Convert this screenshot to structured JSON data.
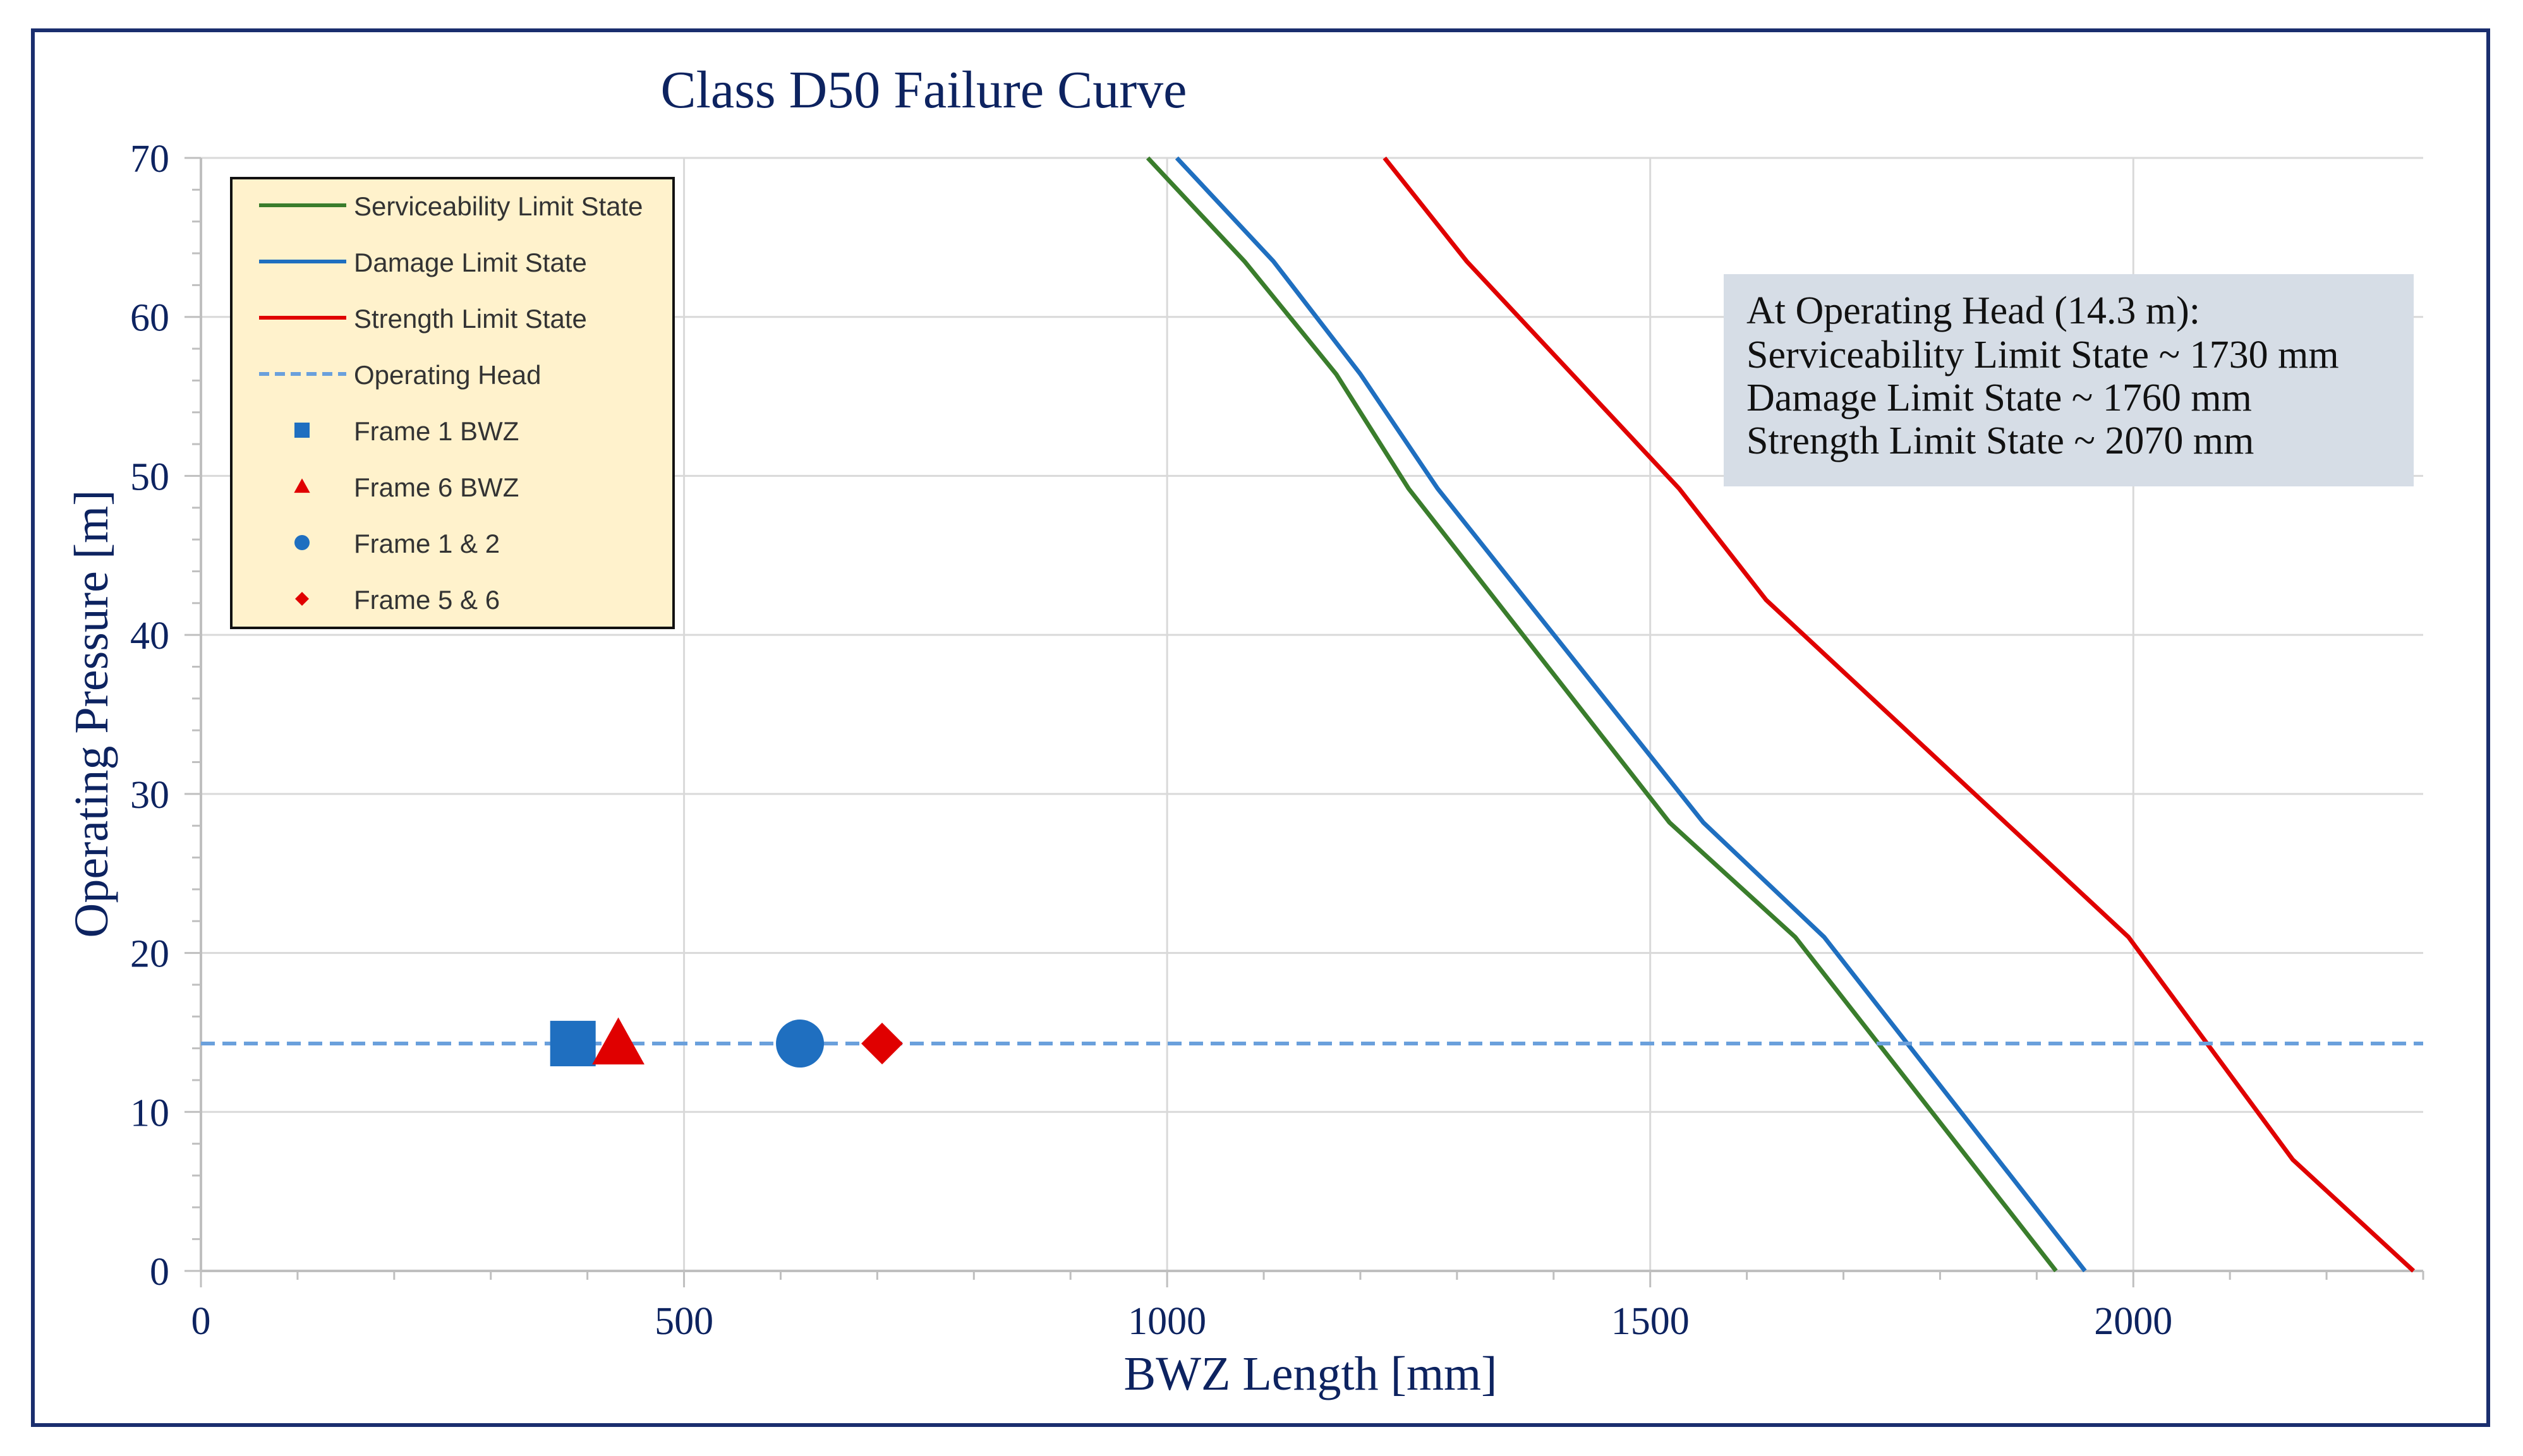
{
  "chart_data": {
    "type": "line",
    "title": "Class D50 Failure Curve",
    "xlabel": "BWZ Length [mm]",
    "ylabel": "Operating Pressure [m]",
    "xlim": [
      0,
      2300
    ],
    "ylim": [
      0,
      70
    ],
    "x_ticks": [
      0,
      500,
      1000,
      1500,
      2000
    ],
    "y_ticks": [
      0,
      10,
      20,
      30,
      40,
      50,
      60,
      70
    ],
    "grid": true,
    "legend_position": "top-left",
    "series": [
      {
        "name": "Serviceability Limit State",
        "color": "#3a7d2c",
        "style": "solid",
        "points": [
          [
            1920,
            0
          ],
          [
            1650,
            21
          ],
          [
            1520,
            28.2
          ],
          [
            1250,
            49.2
          ],
          [
            1175,
            56.4
          ],
          [
            1080,
            63.5
          ],
          [
            980,
            70
          ]
        ]
      },
      {
        "name": "Damage Limit State",
        "color": "#1f6fc0",
        "style": "solid",
        "points": [
          [
            1950,
            0
          ],
          [
            1680,
            21
          ],
          [
            1555,
            28.2
          ],
          [
            1280,
            49.2
          ],
          [
            1200,
            56.4
          ],
          [
            1110,
            63.5
          ],
          [
            1010,
            70
          ]
        ]
      },
      {
        "name": "Strength Limit State",
        "color": "#e00000",
        "style": "solid",
        "points": [
          [
            2290,
            0
          ],
          [
            2165,
            7
          ],
          [
            1995,
            21
          ],
          [
            1620,
            42.2
          ],
          [
            1530,
            49.2
          ],
          [
            1310,
            63.5
          ],
          [
            1225,
            70
          ]
        ]
      },
      {
        "name": "Operating Head",
        "color": "#6aa0dc",
        "style": "dashed",
        "points": [
          [
            0,
            14.3
          ],
          [
            2300,
            14.3
          ]
        ]
      },
      {
        "name": "Frame 1 BWZ",
        "color": "#1f6fc0",
        "marker": "square",
        "points": [
          [
            385,
            14.3
          ]
        ]
      },
      {
        "name": "Frame 6 BWZ",
        "color": "#e00000",
        "marker": "triangle",
        "points": [
          [
            432,
            14.3
          ]
        ]
      },
      {
        "name": "Frame 1 & 2",
        "color": "#1f6fc0",
        "marker": "circle",
        "points": [
          [
            620,
            14.3
          ]
        ]
      },
      {
        "name": "Frame 5 & 6",
        "color": "#e00000",
        "marker": "diamond",
        "points": [
          [
            705,
            14.3
          ]
        ]
      }
    ],
    "annotation": {
      "lines": [
        "At Operating Head (14.3 m):",
        "Serviceability Limit State ~ 1730 mm",
        "Damage Limit State ~ 1760 mm",
        "Strength Limit State ~ 2070 mm"
      ]
    }
  }
}
